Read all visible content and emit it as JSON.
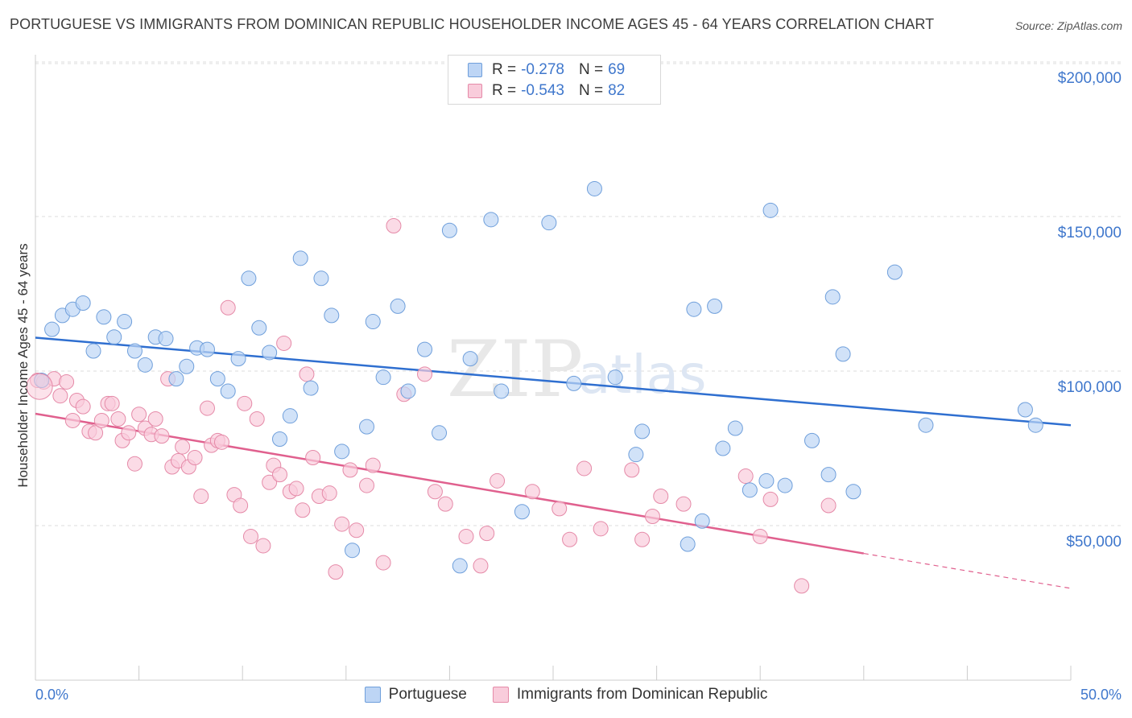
{
  "title": "PORTUGUESE VS IMMIGRANTS FROM DOMINICAN REPUBLIC HOUSEHOLDER INCOME AGES 45 - 64 YEARS CORRELATION CHART",
  "source": "Source: ZipAtlas.com",
  "watermark": {
    "zip": "ZIP",
    "atlas": "atlas"
  },
  "legend": {
    "r_label": "R =",
    "n_label": "N =",
    "rows": [
      {
        "r": "-0.278",
        "n": "69",
        "color": "#a8c8f0",
        "border": "#6f9fdb"
      },
      {
        "r": "-0.543",
        "n": "82",
        "color": "#f8c2d2",
        "border": "#e58aa8"
      }
    ]
  },
  "colors": {
    "blue_fill": "#bdd5f5",
    "blue_stroke": "#6f9fdb",
    "blue_line": "#2f6fd0",
    "pink_fill": "#f9ccdb",
    "pink_stroke": "#e58aa8",
    "pink_line": "#e0608e",
    "axis_text": "#3f77cc",
    "grid": "#dcdcdc"
  },
  "chart_data": {
    "type": "scatter",
    "title": "PORTUGUESE VS IMMIGRANTS FROM DOMINICAN REPUBLIC HOUSEHOLDER INCOME AGES 45 - 64 YEARS CORRELATION CHART",
    "xlabel": "",
    "ylabel": "Householder Income Ages 45 - 64 years",
    "xlim": [
      0,
      50
    ],
    "ylim": [
      0,
      205000
    ],
    "x_tick_labels": [
      "0.0%",
      "50.0%"
    ],
    "y_ticks": [
      50000,
      100000,
      150000,
      200000
    ],
    "y_tick_labels": [
      "$50,000",
      "$100,000",
      "$150,000",
      "$200,000"
    ],
    "grid": true,
    "legend_position": "top-center",
    "series": [
      {
        "name": "Portuguese",
        "trend": {
          "x": [
            0,
            50
          ],
          "y": [
            110800,
            82500
          ]
        },
        "points": [
          [
            0.3,
            97000
          ],
          [
            0.8,
            113500
          ],
          [
            1.3,
            118000
          ],
          [
            1.8,
            120000
          ],
          [
            2.3,
            122000
          ],
          [
            2.8,
            106500
          ],
          [
            3.3,
            117500
          ],
          [
            3.8,
            111000
          ],
          [
            4.3,
            116000
          ],
          [
            4.8,
            106500
          ],
          [
            5.3,
            102000
          ],
          [
            5.8,
            111000
          ],
          [
            6.3,
            110500
          ],
          [
            6.8,
            97500
          ],
          [
            7.3,
            101500
          ],
          [
            7.8,
            107500
          ],
          [
            8.3,
            107000
          ],
          [
            8.8,
            97500
          ],
          [
            9.3,
            93500
          ],
          [
            9.8,
            104000
          ],
          [
            10.3,
            130000
          ],
          [
            10.8,
            114000
          ],
          [
            11.3,
            106000
          ],
          [
            11.8,
            78000
          ],
          [
            12.3,
            85500
          ],
          [
            12.8,
            136500
          ],
          [
            13.3,
            94500
          ],
          [
            13.8,
            130000
          ],
          [
            14.3,
            118000
          ],
          [
            14.8,
            74000
          ],
          [
            15.3,
            42000
          ],
          [
            16.0,
            82000
          ],
          [
            16.3,
            116000
          ],
          [
            16.8,
            98000
          ],
          [
            17.5,
            121000
          ],
          [
            18.0,
            93500
          ],
          [
            18.8,
            107000
          ],
          [
            19.5,
            80000
          ],
          [
            20.0,
            145500
          ],
          [
            20.5,
            37000
          ],
          [
            21.0,
            104000
          ],
          [
            22.0,
            149000
          ],
          [
            22.5,
            93500
          ],
          [
            23.5,
            54500
          ],
          [
            24.8,
            148000
          ],
          [
            26.0,
            96000
          ],
          [
            27.0,
            159000
          ],
          [
            28.0,
            98000
          ],
          [
            29.0,
            73000
          ],
          [
            29.3,
            80500
          ],
          [
            31.5,
            44000
          ],
          [
            31.8,
            120000
          ],
          [
            32.2,
            51500
          ],
          [
            32.8,
            121000
          ],
          [
            33.2,
            75000
          ],
          [
            33.8,
            81500
          ],
          [
            34.5,
            61500
          ],
          [
            35.3,
            64500
          ],
          [
            35.5,
            152000
          ],
          [
            36.2,
            63000
          ],
          [
            37.5,
            77500
          ],
          [
            38.3,
            66500
          ],
          [
            38.5,
            124000
          ],
          [
            39.0,
            105500
          ],
          [
            39.5,
            61000
          ],
          [
            41.5,
            132000
          ],
          [
            43.0,
            82500
          ],
          [
            47.8,
            87500
          ],
          [
            48.3,
            82500
          ]
        ]
      },
      {
        "name": "Immigrants from Dominican Republic",
        "trend": {
          "x": [
            0,
            40
          ],
          "y": [
            86200,
            41000
          ]
        },
        "trend_dashed": {
          "x": [
            40,
            50
          ],
          "y": [
            41000,
            29700
          ]
        },
        "points": [
          [
            0.1,
            97000
          ],
          [
            0.4,
            96500
          ],
          [
            0.9,
            97500
          ],
          [
            1.2,
            92000
          ],
          [
            1.5,
            96500
          ],
          [
            1.8,
            84000
          ],
          [
            2.0,
            90500
          ],
          [
            2.3,
            88500
          ],
          [
            2.6,
            80500
          ],
          [
            2.9,
            80000
          ],
          [
            3.2,
            84000
          ],
          [
            3.5,
            89500
          ],
          [
            3.7,
            89500
          ],
          [
            4.0,
            84500
          ],
          [
            4.2,
            77500
          ],
          [
            4.5,
            80000
          ],
          [
            4.8,
            70000
          ],
          [
            5.0,
            86000
          ],
          [
            5.3,
            81500
          ],
          [
            5.6,
            79500
          ],
          [
            5.8,
            84500
          ],
          [
            6.1,
            79000
          ],
          [
            6.4,
            97500
          ],
          [
            6.6,
            69000
          ],
          [
            6.9,
            71000
          ],
          [
            7.1,
            75500
          ],
          [
            7.4,
            69000
          ],
          [
            7.7,
            72000
          ],
          [
            8.0,
            59500
          ],
          [
            8.3,
            88000
          ],
          [
            8.5,
            76000
          ],
          [
            8.8,
            77500
          ],
          [
            9.0,
            77000
          ],
          [
            9.3,
            120500
          ],
          [
            9.6,
            60000
          ],
          [
            9.9,
            56500
          ],
          [
            10.1,
            89500
          ],
          [
            10.4,
            46500
          ],
          [
            10.7,
            84500
          ],
          [
            11.0,
            43500
          ],
          [
            11.3,
            64000
          ],
          [
            11.5,
            69500
          ],
          [
            11.8,
            66500
          ],
          [
            12.0,
            109000
          ],
          [
            12.3,
            61000
          ],
          [
            12.6,
            62000
          ],
          [
            12.9,
            55000
          ],
          [
            13.1,
            99000
          ],
          [
            13.4,
            72000
          ],
          [
            13.7,
            59500
          ],
          [
            14.2,
            60500
          ],
          [
            14.5,
            35000
          ],
          [
            14.8,
            50500
          ],
          [
            15.2,
            68000
          ],
          [
            15.5,
            48500
          ],
          [
            16.0,
            63000
          ],
          [
            16.3,
            69500
          ],
          [
            16.8,
            38000
          ],
          [
            17.3,
            147000
          ],
          [
            17.8,
            92500
          ],
          [
            18.8,
            99000
          ],
          [
            19.3,
            61000
          ],
          [
            19.8,
            57000
          ],
          [
            20.8,
            46500
          ],
          [
            21.5,
            37000
          ],
          [
            21.8,
            47500
          ],
          [
            22.3,
            64500
          ],
          [
            24.0,
            61000
          ],
          [
            25.3,
            55500
          ],
          [
            25.8,
            45500
          ],
          [
            26.5,
            68500
          ],
          [
            27.3,
            49000
          ],
          [
            28.8,
            68000
          ],
          [
            29.3,
            45500
          ],
          [
            29.8,
            53000
          ],
          [
            30.2,
            59500
          ],
          [
            31.3,
            57000
          ],
          [
            34.3,
            66000
          ],
          [
            35.0,
            46500
          ],
          [
            35.5,
            58500
          ],
          [
            38.3,
            56500
          ],
          [
            37.0,
            30500
          ]
        ]
      }
    ]
  }
}
